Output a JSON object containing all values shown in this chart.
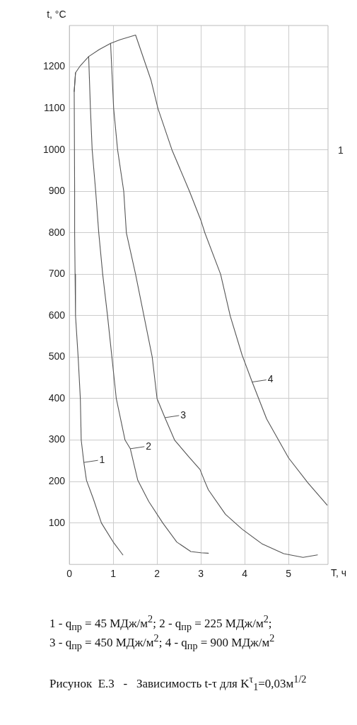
{
  "chart_data": {
    "type": "line",
    "title": "Рисунок  Е.3   -   Зависимость t-τ для K$^{τ}$$_{1}$=0,03м$^{1/2}$",
    "xlabel": "Т, ч",
    "ylabel": "t, °C",
    "xlim": [
      0,
      5.9
    ],
    "xticks": [
      0,
      1,
      2,
      3,
      4,
      5
    ],
    "ylim": [
      0,
      1300
    ],
    "yticks": [
      100,
      200,
      300,
      400,
      500,
      600,
      700,
      800,
      900,
      1000,
      1100,
      1200
    ],
    "grid": true,
    "line_style": "solid",
    "marker": "none",
    "series": [
      {
        "color": "#555555",
        "x": [
          0.14,
          0.11,
          0.12,
          0.12,
          0.13,
          0.14,
          0.2,
          0.25,
          0.27,
          0.33,
          0.39,
          0.55,
          0.73,
          1.0,
          1.22
        ],
        "values": [
          1186,
          1141,
          900,
          800,
          700,
          600,
          500,
          400,
          300,
          246,
          203,
          157,
          100,
          54,
          23
        ]
      },
      {
        "color": "#555555",
        "x": [
          0.44,
          0.48,
          0.52,
          0.6,
          0.67,
          0.76,
          0.87,
          0.97,
          1.07,
          1.27,
          1.39,
          1.56,
          1.81,
          2.13,
          2.45,
          2.77,
          3.0,
          3.17
        ],
        "values": [
          1225,
          1100,
          1000,
          900,
          800,
          700,
          600,
          500,
          400,
          300,
          279,
          203,
          152,
          100,
          54,
          31,
          28,
          27
        ]
      },
      {
        "color": "#555555",
        "x": [
          0.94,
          1.01,
          1.1,
          1.24,
          1.3,
          1.51,
          1.7,
          1.89,
          2.0,
          2.18,
          2.4,
          2.72,
          2.98,
          3.09,
          3.17,
          3.56,
          3.94,
          4.39,
          4.89,
          5.33,
          5.66
        ],
        "values": [
          1257,
          1100,
          1000,
          900,
          800,
          700,
          600,
          500,
          400,
          354,
          300,
          260,
          229,
          200,
          180,
          121,
          85,
          50,
          26,
          17,
          23
        ]
      },
      {
        "color": "#555555",
        "x": [
          0.11,
          0.14,
          0.25,
          0.44,
          0.68,
          0.94,
          1.16,
          1.51,
          1.86,
          2.02,
          2.34,
          2.74,
          3.0,
          3.09,
          3.45,
          3.67,
          3.94,
          4.17,
          4.5,
          5.0,
          5.44,
          5.88
        ],
        "values": [
          1141,
          1186,
          1203,
          1225,
          1242,
          1257,
          1266,
          1277,
          1169,
          1100,
          1000,
          900,
          830,
          800,
          700,
          599,
          505,
          440,
          351,
          257,
          197,
          143
        ]
      }
    ],
    "annotations": [
      {
        "text": "1",
        "x": 0.33,
        "y": 246
      },
      {
        "text": "2",
        "x": 1.39,
        "y": 279
      },
      {
        "text": "3",
        "x": 2.18,
        "y": 354
      },
      {
        "text": "4",
        "x": 4.17,
        "y": 440
      },
      "1",
      "1 - q$_{пр}$ = 45 МДж/м$^{2}$; 2 - q$_{пр}$ = 225 МДж/м$^{2}$;",
      "3 - q$_{пр}$ = 450 МДж/м$^{2}$; 4 - q$_{пр}$ = 900 МДж/м$^{2}$"
    ]
  }
}
